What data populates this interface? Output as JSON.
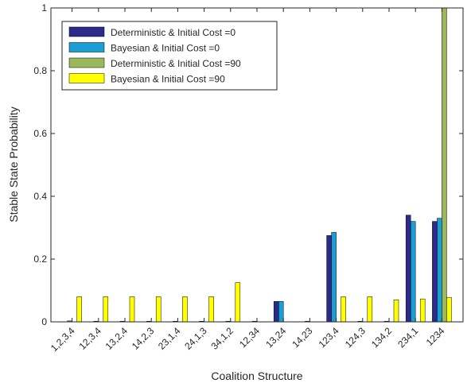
{
  "chart_data": {
    "type": "bar",
    "title": "",
    "xlabel": "Coalition Structure",
    "ylabel": "Stable State Probability",
    "ylim": [
      0,
      1
    ],
    "yticks": [
      "0",
      "0.2",
      "0.4",
      "0.6",
      "0.8",
      "1"
    ],
    "grid": false,
    "legend_position": "top-left",
    "categories": [
      "1,2,3,4",
      "12,3,4",
      "13,2,4",
      "14,2,3",
      "23,1,4",
      "24,1,3",
      "34,1,2",
      "12,34",
      "13,24",
      "14,23",
      "123,4",
      "124,3",
      "134,2",
      "234,1",
      "1234"
    ],
    "series": [
      {
        "name": "Deterministic & Initial Cost =0",
        "color": "#2e2a8a",
        "values": [
          0,
          0,
          0,
          0,
          0,
          0,
          0,
          0,
          0.065,
          0,
          0.275,
          0,
          0,
          0.34,
          0.32
        ]
      },
      {
        "name": "Bayesian & Initial Cost =0",
        "color": "#1b9ed6",
        "values": [
          0.003,
          0.002,
          0.002,
          0.002,
          0.002,
          0.002,
          0.002,
          0.002,
          0.065,
          0.002,
          0.285,
          0.002,
          0.002,
          0.32,
          0.33
        ]
      },
      {
        "name": "Deterministic & Initial Cost =90",
        "color": "#9bb85a",
        "values": [
          0,
          0,
          0,
          0,
          0,
          0,
          0,
          0,
          0,
          0,
          0,
          0,
          0,
          0,
          1.0
        ]
      },
      {
        "name": "Bayesian & Initial Cost =90",
        "color": "#ffff00",
        "values": [
          0.08,
          0.08,
          0.08,
          0.08,
          0.08,
          0.08,
          0.125,
          0,
          0,
          0,
          0.08,
          0.08,
          0.07,
          0.073,
          0.078
        ]
      }
    ]
  }
}
